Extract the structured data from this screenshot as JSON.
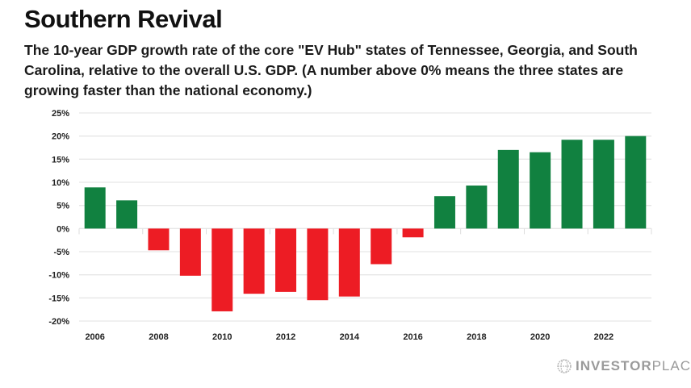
{
  "chart_data": {
    "type": "bar",
    "title": "Southern Revival",
    "subtitle": "The 10-year GDP growth rate of the core \"EV Hub\" states of Tennessee, Georgia, and South Carolina, relative to the overall U.S. GDP. (A number above 0% means the three states are growing faster than the national economy.)",
    "categories": [
      "2006",
      "2007",
      "2008",
      "2009",
      "2010",
      "2011",
      "2012",
      "2013",
      "2014",
      "2015",
      "2016",
      "2017",
      "2018",
      "2019",
      "2020",
      "2021",
      "2022",
      "2023"
    ],
    "values": [
      8.9,
      6.1,
      -4.7,
      -10.2,
      -17.9,
      -14.1,
      -13.7,
      -15.5,
      -14.7,
      -7.7,
      -1.9,
      7.0,
      9.3,
      17.0,
      16.5,
      19.2,
      19.2,
      20.0
    ],
    "x_tick_labels": [
      "2006",
      "2008",
      "2010",
      "2012",
      "2014",
      "2016",
      "2018",
      "2020",
      "2022"
    ],
    "y_ticks": [
      25,
      20,
      15,
      10,
      5,
      0,
      -5,
      -10,
      -15,
      -20
    ],
    "y_tick_labels": [
      "25%",
      "20%",
      "15%",
      "10%",
      "5%",
      "0%",
      "-5%",
      "-10%",
      "-15%",
      "-20%"
    ],
    "ylim": [
      -20,
      25
    ],
    "grid": true,
    "legend": "none",
    "colors": {
      "positive": "#118140",
      "negative": "#ed1c24",
      "grid": "#e6e6e6"
    }
  },
  "brand": {
    "bold": "INVESTOR",
    "light": "PLACE",
    "icon": "globe-icon"
  }
}
